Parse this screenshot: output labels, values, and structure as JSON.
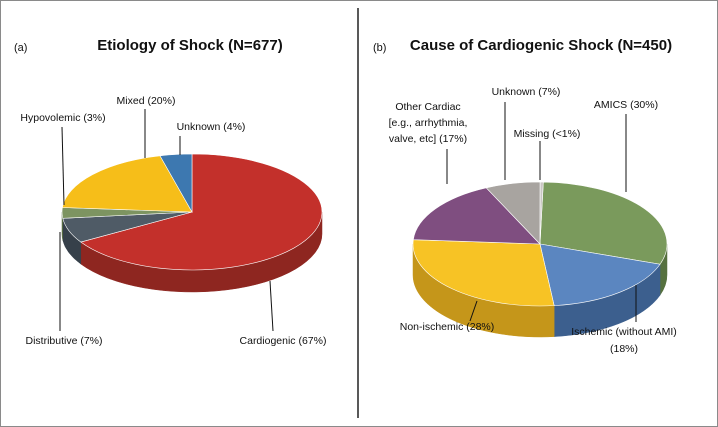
{
  "chart_data": [
    {
      "type": "pie",
      "panel": "(a)",
      "title": "Etiology of Shock (N=677)",
      "slices": [
        {
          "label": "Cardiogenic (67%)",
          "value": 67,
          "color": "#c3302b",
          "side": "#8e2620"
        },
        {
          "label": "Distributive (7%)",
          "value": 7,
          "color": "#4f5b66",
          "side": "#36404a"
        },
        {
          "label": "Hypovolemic (3%)",
          "value": 3,
          "color": "#7d9461",
          "side": "#566a43"
        },
        {
          "label": "Mixed (20%)",
          "value": 20,
          "color": "#f6be19",
          "side": "#bf8f14"
        },
        {
          "label": "Unknown (4%)",
          "value": 4,
          "color": "#3d78b0",
          "side": "#2a5680"
        }
      ]
    },
    {
      "type": "pie",
      "panel": "(b)",
      "title": "Cause of Cardiogenic Shock (N=450)",
      "slices": [
        {
          "label": "AMICS (30%)",
          "value": 30,
          "color": "#7a9a5c",
          "side": "#56713f"
        },
        {
          "label": "Ischemic (without AMI) (18%)",
          "value": 18,
          "color": "#5b86c0",
          "side": "#3c5f8e"
        },
        {
          "label": "Non-ischemic (28%)",
          "value": 28,
          "color": "#f7c325",
          "side": "#c5961a"
        },
        {
          "label": "Other Cardiac [e.g., arrhythmia, valve, etc] (17%)",
          "value": 17,
          "color": "#7f4e80",
          "side": "#5a375c"
        },
        {
          "label": "Unknown (7%)",
          "value": 7,
          "color": "#a8a4a0",
          "side": "#7b7874"
        },
        {
          "label": "Missing (<1%)",
          "value": 0.4,
          "color": "#c9c6c2",
          "side": "#9a9794"
        }
      ]
    }
  ]
}
